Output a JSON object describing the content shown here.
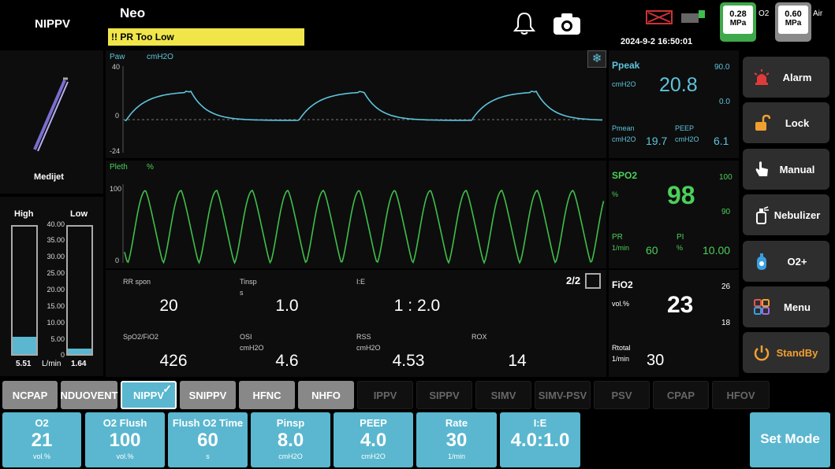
{
  "header": {
    "mode": "NIPPV",
    "patient": "Neo",
    "alarm_text": "!! PR Too Low",
    "datetime": "2024-9-2 16:50:01",
    "o2_gauge": {
      "value": "0.28",
      "unit": "MPa",
      "label": "O2"
    },
    "air_gauge": {
      "value": "0.60",
      "unit": "MPa",
      "label": "Air"
    }
  },
  "device": {
    "name": "Medijet"
  },
  "flow": {
    "high_label": "High",
    "low_label": "Low",
    "scale": [
      "40.00",
      "35.00",
      "30.00",
      "25.00",
      "20.00",
      "15.00",
      "10.00",
      "5.00",
      "0"
    ],
    "high_value": "5.51",
    "unit": "L/min",
    "low_value": "1.64",
    "high_fill_fraction": 0.138,
    "low_fill_fraction": 0.041
  },
  "waveforms": {
    "paw": {
      "title": "Paw",
      "unit": "cmH2O",
      "ymax": "40",
      "yzero": "0",
      "ymin": "-24"
    },
    "pleth": {
      "title": "Pleth",
      "unit": "%",
      "ymax": "100",
      "yzero": "0"
    }
  },
  "measurements": {
    "page": "2/2",
    "row1": [
      {
        "label": "RR spon",
        "unit": "",
        "value": "20"
      },
      {
        "label": "Tinsp",
        "unit": "s",
        "value": "1.0"
      },
      {
        "label": "I:E",
        "unit": "",
        "value": "1 : 2.0"
      }
    ],
    "row2": [
      {
        "label": "SpO2/FiO2",
        "unit": "",
        "value": "426"
      },
      {
        "label": "OSI",
        "unit": "cmH2O",
        "value": "4.6"
      },
      {
        "label": "RSS",
        "unit": "cmH2O",
        "value": "4.53"
      },
      {
        "label": "ROX",
        "unit": "",
        "value": "14"
      }
    ]
  },
  "vitals": {
    "ppeak": {
      "label": "Ppeak",
      "unit": "cmH2O",
      "value": "20.8",
      "high": "90.0",
      "low": "0.0"
    },
    "pmean": {
      "label": "Pmean",
      "unit": "cmH2O",
      "value": "19.7"
    },
    "peep": {
      "label": "PEEP",
      "unit": "cmH2O",
      "value": "6.1"
    },
    "spo2": {
      "label": "SPO2",
      "unit": "%",
      "value": "98",
      "high": "100",
      "low": "90"
    },
    "pr": {
      "label": "PR",
      "unit": "1/min",
      "value": "60"
    },
    "pi": {
      "label": "PI",
      "unit": "%",
      "value": "10.00"
    },
    "fio2": {
      "label": "FiO2",
      "unit": "vol.%",
      "value": "23",
      "high": "26",
      "low": "18"
    },
    "rtotal": {
      "label": "Rtotal",
      "unit": "1/min",
      "value": "30"
    }
  },
  "sidebar": {
    "alarm": "Alarm",
    "lock": "Lock",
    "manual": "Manual",
    "nebulizer": "Nebulizer",
    "o2plus": "O2+",
    "menu": "Menu",
    "standby": "StandBy"
  },
  "modes": {
    "ncpap": "NCPAP",
    "nduovent": "NDUOVENT",
    "nippv": "NIPPV",
    "snippv": "SNIPPV",
    "hfnc": "HFNC",
    "nhfo": "NHFO",
    "ippv": "IPPV",
    "sippv": "SIPPV",
    "simv": "SIMV",
    "simvpsv": "SIMV-PSV",
    "psv": "PSV",
    "cpap": "CPAP",
    "hfov": "HFOV"
  },
  "params": [
    {
      "label": "O2",
      "value": "21",
      "unit": "vol.%"
    },
    {
      "label": "O2 Flush",
      "value": "100",
      "unit": "vol.%"
    },
    {
      "label": "Flush O2 Time",
      "value": "60",
      "unit": "s"
    },
    {
      "label": "Pinsp",
      "value": "8.0",
      "unit": "cmH2O"
    },
    {
      "label": "PEEP",
      "value": "4.0",
      "unit": "cmH2O"
    },
    {
      "label": "Rate",
      "value": "30",
      "unit": "1/min"
    },
    {
      "label": "I:E",
      "value": "4.0:1.0",
      "unit": ""
    }
  ],
  "set_mode": "Set Mode",
  "colors": {
    "paw": "#5ec4dc",
    "pleth": "#3fbf4a",
    "alarm_bar": "#f0e64a",
    "param_tile": "#5ab7cf",
    "standby": "#f0a030"
  }
}
